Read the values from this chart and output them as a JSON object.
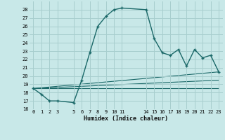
{
  "xlabel": "Humidex (Indice chaleur)",
  "bg_color": "#c8e8e8",
  "grid_color": "#a8cece",
  "line_color": "#1a6868",
  "xlim": [
    -0.5,
    23.5
  ],
  "ylim": [
    16,
    29
  ],
  "xtick_vals": [
    0,
    1,
    2,
    3,
    5,
    6,
    7,
    8,
    9,
    10,
    11,
    14,
    15,
    16,
    17,
    18,
    19,
    20,
    21,
    22,
    23
  ],
  "xtick_labels": [
    "0",
    "1",
    "2",
    "3",
    "5",
    "6",
    "7",
    "8",
    "9",
    "10",
    "11",
    "14",
    "15",
    "16",
    "17",
    "18",
    "19",
    "20",
    "21",
    "22",
    "23"
  ],
  "ytick_vals": [
    16,
    17,
    18,
    19,
    20,
    21,
    22,
    23,
    24,
    25,
    26,
    27,
    28
  ],
  "ytick_labels": [
    "16",
    "17",
    "18",
    "19",
    "20",
    "21",
    "22",
    "23",
    "24",
    "25",
    "26",
    "27",
    "28"
  ],
  "main_x": [
    0,
    1,
    2,
    3,
    5,
    6,
    7,
    8,
    9,
    10,
    11,
    14,
    15,
    16,
    17,
    18,
    19,
    20,
    21,
    22,
    23
  ],
  "main_y": [
    18.5,
    17.8,
    17.0,
    17.0,
    16.8,
    19.5,
    22.8,
    26.0,
    27.2,
    28.0,
    28.2,
    28.0,
    24.5,
    22.8,
    22.5,
    23.2,
    21.2,
    23.2,
    22.2,
    22.5,
    20.5
  ],
  "fan_lines": [
    {
      "x0": 0,
      "y0": 18.5,
      "x1": 23,
      "y1": 20.5
    },
    {
      "x0": 0,
      "y0": 18.5,
      "x1": 23,
      "y1": 19.5
    },
    {
      "x0": 0,
      "y0": 18.5,
      "x1": 23,
      "y1": 18.5
    }
  ]
}
